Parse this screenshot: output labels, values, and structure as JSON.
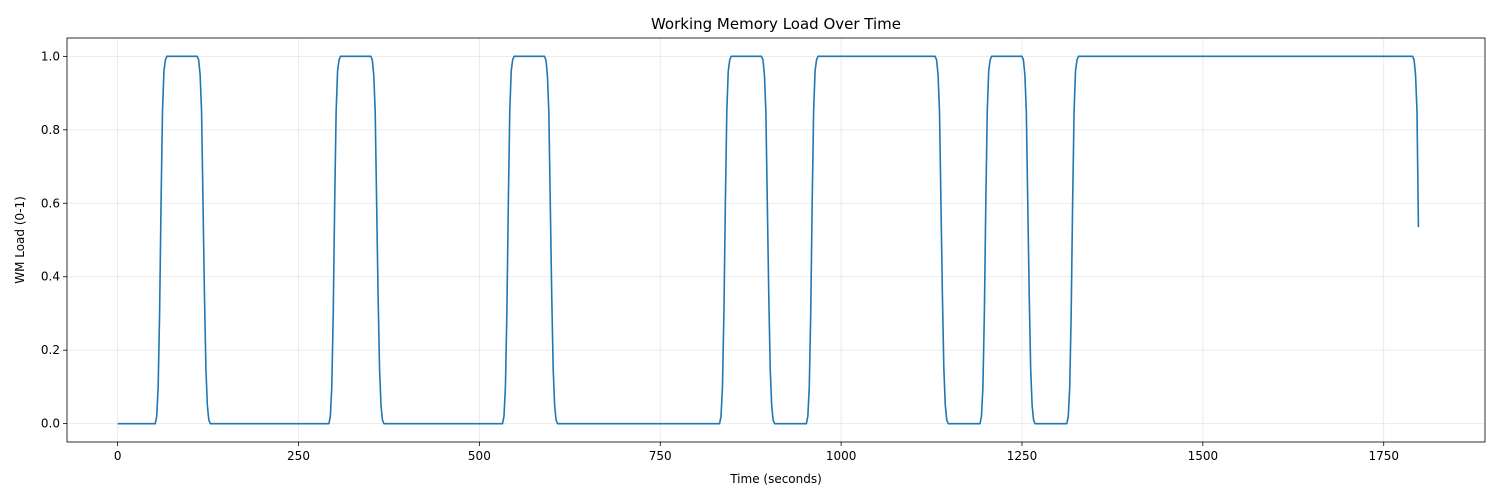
{
  "chart_data": {
    "type": "line",
    "title": "Working Memory Load Over Time",
    "xlabel": "Time (seconds)",
    "ylabel": "WM Load (0-1)",
    "xlim": [
      -70,
      1890
    ],
    "ylim": [
      -0.05,
      1.05
    ],
    "x_ticks": [
      0,
      250,
      500,
      750,
      1000,
      1250,
      1500,
      1750
    ],
    "y_ticks": [
      0.0,
      0.2,
      0.4,
      0.6,
      0.8,
      1.0
    ],
    "x_tick_labels": [
      "0",
      "250",
      "500",
      "750",
      "1000",
      "1250",
      "1500",
      "1750"
    ],
    "y_tick_labels": [
      "0.0",
      "0.2",
      "0.4",
      "0.6",
      "0.8",
      "1.0"
    ],
    "grid": true,
    "series": [
      {
        "name": "WM Load",
        "color": "#1f77b4",
        "x": [
          0,
          52,
          54,
          56,
          58,
          60,
          62,
          64,
          66,
          68,
          110,
          112,
          114,
          116,
          118,
          120,
          122,
          124,
          126,
          128,
          292,
          294,
          296,
          298,
          300,
          302,
          304,
          306,
          308,
          310,
          350,
          352,
          354,
          356,
          358,
          360,
          362,
          364,
          366,
          368,
          532,
          534,
          536,
          538,
          540,
          542,
          544,
          546,
          548,
          550,
          590,
          592,
          594,
          596,
          598,
          600,
          602,
          604,
          606,
          608,
          832,
          834,
          836,
          838,
          840,
          842,
          844,
          846,
          848,
          850,
          890,
          892,
          894,
          896,
          898,
          900,
          902,
          904,
          906,
          908,
          952,
          954,
          956,
          958,
          960,
          962,
          964,
          966,
          968,
          970,
          1130,
          1132,
          1134,
          1136,
          1138,
          1140,
          1142,
          1144,
          1146,
          1148,
          1192,
          1194,
          1196,
          1198,
          1200,
          1202,
          1204,
          1206,
          1208,
          1210,
          1250,
          1252,
          1254,
          1256,
          1258,
          1260,
          1262,
          1264,
          1266,
          1268,
          1312,
          1314,
          1316,
          1318,
          1320,
          1322,
          1324,
          1326,
          1328,
          1330,
          1790,
          1792,
          1794,
          1796,
          1798
        ],
        "y": [
          0,
          0,
          0.02,
          0.1,
          0.3,
          0.6,
          0.85,
          0.96,
          0.99,
          1,
          1,
          0.99,
          0.95,
          0.85,
          0.6,
          0.35,
          0.15,
          0.05,
          0.01,
          0,
          0,
          0.02,
          0.1,
          0.3,
          0.6,
          0.85,
          0.96,
          0.99,
          1,
          1,
          1,
          0.99,
          0.95,
          0.85,
          0.6,
          0.35,
          0.15,
          0.05,
          0.01,
          0,
          0,
          0.02,
          0.1,
          0.3,
          0.6,
          0.85,
          0.96,
          0.99,
          1,
          1,
          1,
          0.99,
          0.95,
          0.85,
          0.6,
          0.35,
          0.15,
          0.05,
          0.01,
          0,
          0,
          0.02,
          0.1,
          0.3,
          0.6,
          0.85,
          0.96,
          0.99,
          1,
          1,
          1,
          0.99,
          0.95,
          0.85,
          0.6,
          0.35,
          0.15,
          0.05,
          0.01,
          0,
          0,
          0.02,
          0.1,
          0.3,
          0.6,
          0.85,
          0.96,
          0.99,
          1,
          1,
          1,
          0.99,
          0.95,
          0.85,
          0.6,
          0.35,
          0.15,
          0.05,
          0.01,
          0,
          0,
          0.02,
          0.1,
          0.3,
          0.6,
          0.85,
          0.96,
          0.99,
          1,
          1,
          1,
          0.99,
          0.95,
          0.85,
          0.6,
          0.35,
          0.15,
          0.05,
          0.01,
          0,
          0,
          0.02,
          0.1,
          0.3,
          0.6,
          0.85,
          0.96,
          0.99,
          1,
          1,
          1,
          0.99,
          0.95,
          0.85,
          0.535
        ]
      }
    ]
  }
}
